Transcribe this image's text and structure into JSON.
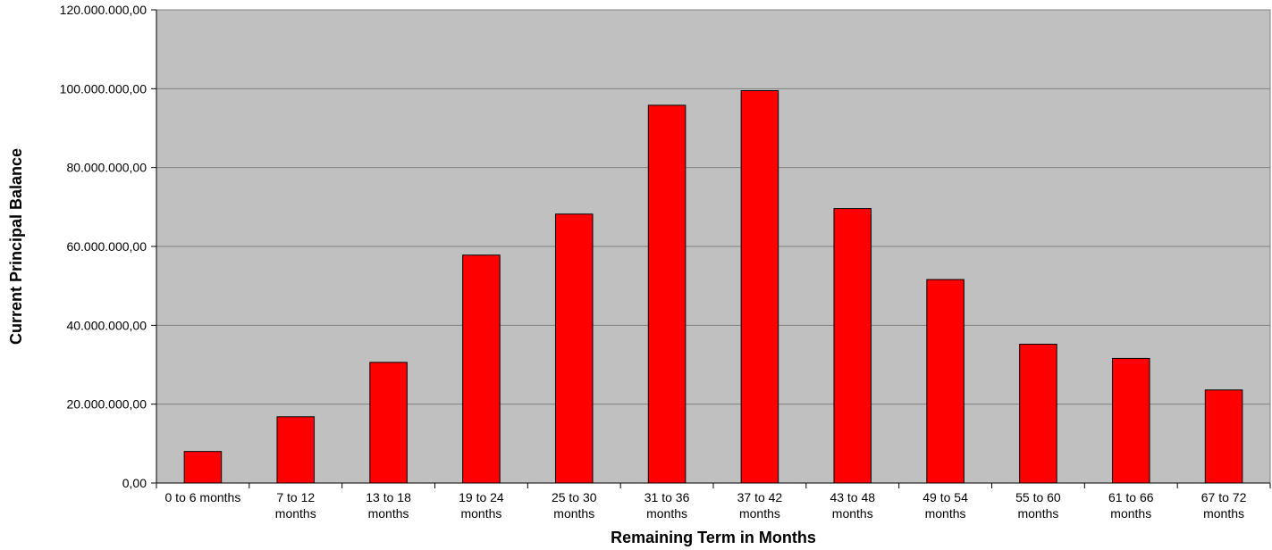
{
  "chart_data": {
    "type": "bar",
    "title": "",
    "xlabel": "Remaining Term in Months",
    "ylabel": "Current Principal Balance",
    "categories": [
      [
        "0 to 6 months"
      ],
      [
        "7 to 12",
        "months"
      ],
      [
        "13 to 18",
        "months"
      ],
      [
        "19 to 24",
        "months"
      ],
      [
        "25 to 30",
        "months"
      ],
      [
        "31 to 36",
        "months"
      ],
      [
        "37 to 42",
        "months"
      ],
      [
        "43 to 48",
        "months"
      ],
      [
        "49 to 54",
        "months"
      ],
      [
        "55 to 60",
        "months"
      ],
      [
        "61 to 66",
        "months"
      ],
      [
        "67 to 72",
        "months"
      ]
    ],
    "values": [
      8000000,
      16800000,
      30600000,
      57800000,
      68200000,
      95800000,
      99500000,
      69600000,
      51600000,
      35200000,
      31600000,
      23600000
    ],
    "ylim": [
      0,
      120000000
    ],
    "yticks": [
      0,
      20000000,
      40000000,
      60000000,
      80000000,
      100000000,
      120000000
    ],
    "ytick_labels": [
      "0,00",
      "20.000.000,00",
      "40.000.000,00",
      "60.000.000,00",
      "80.000.000,00",
      "100.000.000,00",
      "120.000.000,00"
    ],
    "grid": true,
    "legend": "none",
    "colors": {
      "bar_fill": "#ff0000",
      "bar_stroke": "#000000",
      "plot_background": "#c0c0c0",
      "gridline": "#808080"
    }
  }
}
